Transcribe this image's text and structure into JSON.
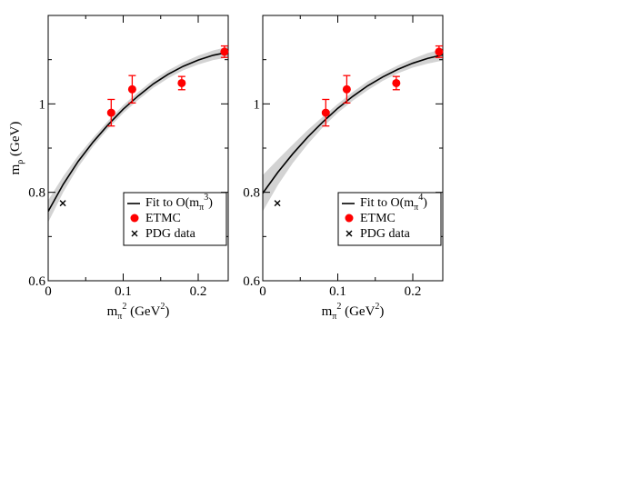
{
  "chart_data": [
    {
      "type": "line",
      "xlabel": {
        "base": "m",
        "sub": "π",
        "sup": "2",
        "unit_pre": " (GeV",
        "unit_sup": "2",
        "unit_post": ")"
      },
      "ylabel": {
        "base": "m",
        "sub": "ρ",
        "unit": " (GeV)"
      },
      "xlim": [
        0,
        0.24
      ],
      "ylim": [
        0.6,
        1.2
      ],
      "xticks": [
        0,
        0.1,
        0.2
      ],
      "xtick_labels": [
        "0",
        "0.1",
        "0.2"
      ],
      "yticks": [
        0.6,
        0.8,
        1.0
      ],
      "ytick_labels": [
        "0.6",
        "0.8",
        "1"
      ],
      "legend_position": "bottom-right",
      "legend": [
        {
          "kind": "line",
          "pre": "Fit to O(m",
          "sub": "π",
          "sup": "3",
          "post": ")"
        },
        {
          "kind": "marker-circle",
          "pre": "ETMC",
          "sub": "",
          "sup": "",
          "post": ""
        },
        {
          "kind": "marker-x",
          "pre": "PDG data",
          "sub": "",
          "sup": "",
          "post": ""
        }
      ],
      "fit": {
        "x": [
          0,
          0.02,
          0.04,
          0.06,
          0.08,
          0.1,
          0.12,
          0.14,
          0.16,
          0.18,
          0.2,
          0.22,
          0.24
        ],
        "y": [
          0.757,
          0.818,
          0.87,
          0.914,
          0.953,
          0.988,
          1.018,
          1.045,
          1.067,
          1.085,
          1.099,
          1.11,
          1.117
        ],
        "y_low": [
          0.732,
          0.8,
          0.857,
          0.904,
          0.944,
          0.979,
          1.009,
          1.036,
          1.058,
          1.076,
          1.089,
          1.099,
          1.105
        ],
        "y_high": [
          0.782,
          0.836,
          0.883,
          0.924,
          0.962,
          0.997,
          1.027,
          1.054,
          1.076,
          1.094,
          1.109,
          1.121,
          1.129
        ]
      },
      "etmc": [
        {
          "x": 0.084,
          "y": 0.98,
          "err": 0.03
        },
        {
          "x": 0.112,
          "y": 1.033,
          "err": 0.031
        },
        {
          "x": 0.178,
          "y": 1.047,
          "err": 0.015
        },
        {
          "x": 0.235,
          "y": 1.118,
          "err": 0.013
        }
      ],
      "pdg": [
        {
          "x": 0.0195,
          "y": 0.7755
        }
      ],
      "colors": {
        "data": "#ff0000",
        "fit": "#000000",
        "band": "#d3d3d3"
      }
    },
    {
      "type": "line",
      "xlabel": {
        "base": "m",
        "sub": "π",
        "sup": "2",
        "unit_pre": " (GeV",
        "unit_sup": "2",
        "unit_post": ")"
      },
      "xlim": [
        0,
        0.24
      ],
      "ylim": [
        0.6,
        1.2
      ],
      "xticks": [
        0,
        0.1,
        0.2
      ],
      "xtick_labels": [
        "0",
        "0.1",
        "0.2"
      ],
      "yticks": [
        0.6,
        0.8,
        1.0
      ],
      "ytick_labels": [
        "0.6",
        "0.8",
        "1"
      ],
      "legend_position": "bottom-right",
      "legend": [
        {
          "kind": "line",
          "pre": "Fit to O(m",
          "sub": "π",
          "sup": "4",
          "post": ")"
        },
        {
          "kind": "marker-circle",
          "pre": "ETMC",
          "sub": "",
          "sup": "",
          "post": ""
        },
        {
          "kind": "marker-x",
          "pre": "PDG data",
          "sub": "",
          "sup": "",
          "post": ""
        }
      ],
      "fit": {
        "x": [
          0,
          0.02,
          0.04,
          0.06,
          0.08,
          0.1,
          0.12,
          0.14,
          0.16,
          0.18,
          0.2,
          0.22,
          0.24
        ],
        "y": [
          0.798,
          0.845,
          0.887,
          0.925,
          0.959,
          0.99,
          1.017,
          1.041,
          1.061,
          1.078,
          1.092,
          1.103,
          1.111
        ],
        "y_low": [
          0.757,
          0.816,
          0.866,
          0.909,
          0.947,
          0.98,
          1.007,
          1.031,
          1.052,
          1.069,
          1.082,
          1.091,
          1.098
        ],
        "y_high": [
          0.839,
          0.874,
          0.908,
          0.941,
          0.971,
          1.0,
          1.027,
          1.051,
          1.07,
          1.087,
          1.102,
          1.115,
          1.124
        ]
      },
      "etmc": [
        {
          "x": 0.084,
          "y": 0.98,
          "err": 0.03
        },
        {
          "x": 0.112,
          "y": 1.033,
          "err": 0.031
        },
        {
          "x": 0.178,
          "y": 1.047,
          "err": 0.015
        },
        {
          "x": 0.235,
          "y": 1.118,
          "err": 0.013
        }
      ],
      "pdg": [
        {
          "x": 0.0195,
          "y": 0.7755
        }
      ],
      "colors": {
        "data": "#ff0000",
        "fit": "#000000",
        "band": "#d3d3d3"
      }
    }
  ]
}
